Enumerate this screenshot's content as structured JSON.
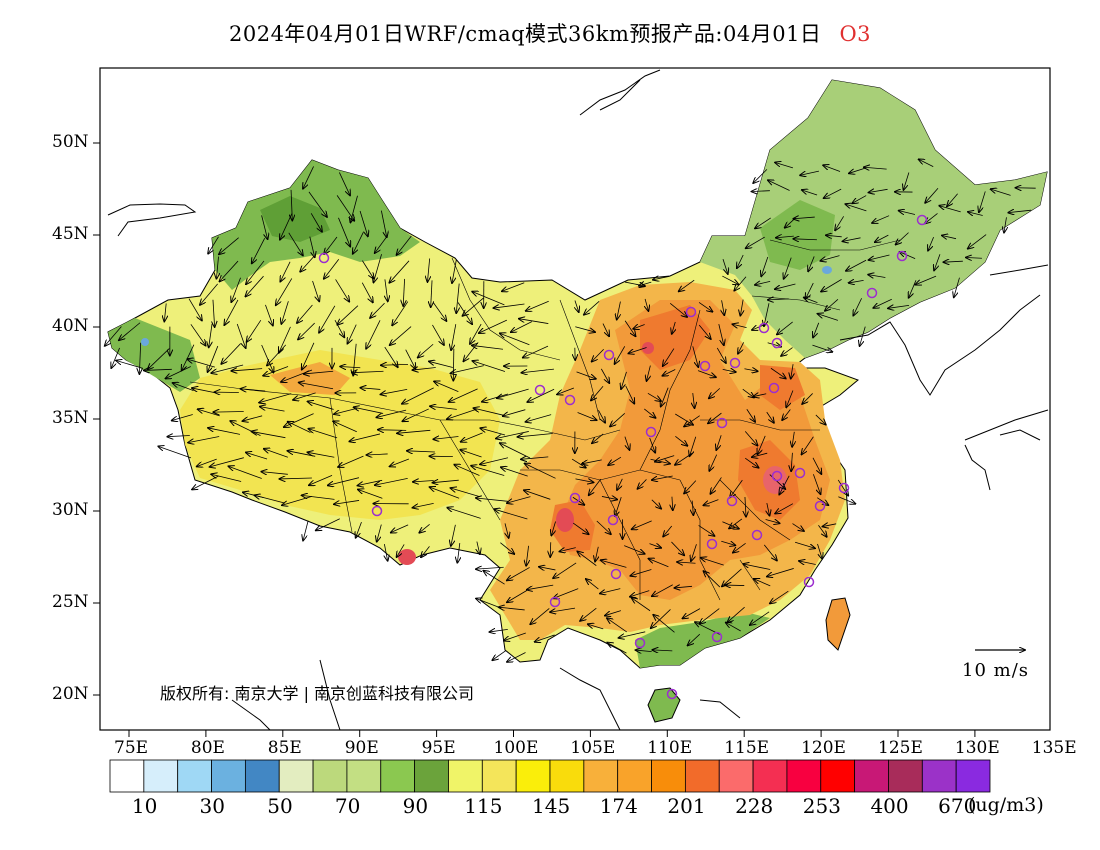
{
  "title": {
    "text": "2024年04月01日WRF/cmaq模式36km预报产品:04月01日",
    "species": "O3"
  },
  "map": {
    "lat_ticks": [
      "50N",
      "45N",
      "40N",
      "35N",
      "30N",
      "25N",
      "20N"
    ],
    "lon_ticks": [
      "75E",
      "80E",
      "85E",
      "90E",
      "95E",
      "100E",
      "105E",
      "110E",
      "115E",
      "120E",
      "125E",
      "130E",
      "135E"
    ],
    "copyright": "版权所有: 南京大学 | 南京创蓝科技有限公司",
    "wind_scale_label": "10 m/s",
    "fill_colors": {
      "ocean": "#ffffff",
      "green_light": "#a8cf78",
      "green": "#7fba4f",
      "green_dark": "#5f9f36",
      "yellow_green": "#dde88a",
      "yellow": "#eef07a",
      "yellow_deep": "#f2e24a",
      "orange_light": "#f3b64a",
      "orange": "#f29a3a",
      "orange_deep": "#ef7a2f",
      "red": "#e34b55",
      "blue_spot": "#6aa8dc"
    },
    "site_marker_color": "#9c2ecf"
  },
  "colorbar": {
    "colors": [
      "#ffffff",
      "#d6eefb",
      "#9fd8f5",
      "#6bb1e0",
      "#4287c4",
      "#e3edc0",
      "#bcd97c",
      "#c3df83",
      "#8bc850",
      "#6ba33b",
      "#f0f468",
      "#f4e55a",
      "#faee0a",
      "#f9dc0c",
      "#f8b03a",
      "#f9a32a",
      "#f88d0a",
      "#f26b2a",
      "#fb6b6b",
      "#f42f52",
      "#f80040",
      "#ff0000",
      "#c81876",
      "#a82c5a",
      "#9b32c8",
      "#8a2ae0"
    ],
    "labels": [
      "10",
      "30",
      "50",
      "70",
      "90",
      "115",
      "145",
      "174",
      "201",
      "228",
      "253",
      "400",
      "670"
    ],
    "unit": "(ug/m3)"
  }
}
